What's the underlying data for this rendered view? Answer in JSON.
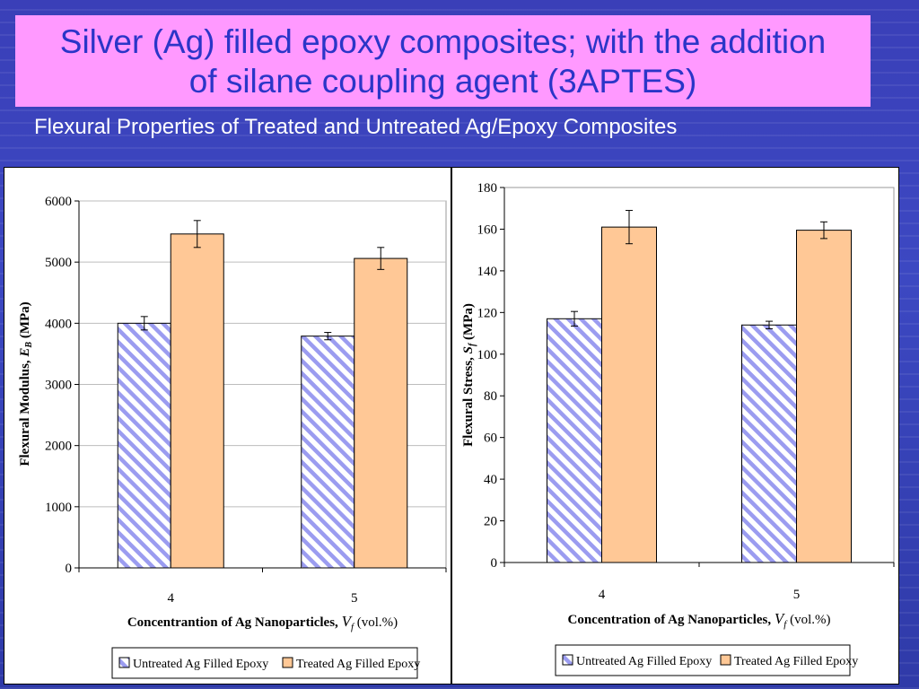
{
  "slide": {
    "title_line1": "Silver (Ag) filled epoxy composites; with the addition",
    "title_line2": "of silane coupling agent (3APTES)",
    "subtitle": "Flexural Properties of Treated and Untreated Ag/Epoxy Composites"
  },
  "colors": {
    "untreated_stripe": "#9b9cf0",
    "treated_fill": "#ffc896",
    "title_bg": "#ff99ff",
    "title_text": "#2b35c8"
  },
  "chart_data": [
    {
      "type": "bar",
      "categories": [
        "4",
        "5"
      ],
      "series": [
        {
          "name": "Untreated Ag Filled Epoxy",
          "values": [
            4000,
            3790
          ],
          "errors": [
            110,
            60
          ]
        },
        {
          "name": "Treated Ag Filled Epoxy",
          "values": [
            5460,
            5060
          ],
          "errors": [
            220,
            180
          ]
        }
      ],
      "ylim": [
        0,
        6000
      ],
      "yticks": [
        0,
        1000,
        2000,
        3000,
        4000,
        5000,
        6000
      ],
      "ylabel_main": "Flexural Modulus, ",
      "ylabel_sym": "E",
      "ylabel_sub": "B",
      "ylabel_unit": " (MPa)",
      "xlabel_main": "Concentrantion of Ag Nanoparticles, ",
      "xlabel_sym": "V",
      "xlabel_sub": "f",
      "xlabel_unit": " (vol.%)",
      "grid": true,
      "legend": "bottom"
    },
    {
      "type": "bar",
      "categories": [
        "4",
        "5"
      ],
      "series": [
        {
          "name": "Untreated Ag Filled Epoxy",
          "values": [
            117,
            114
          ],
          "errors": [
            3.5,
            1.8
          ]
        },
        {
          "name": "Treated Ag Filled Epoxy",
          "values": [
            161,
            159.5
          ],
          "errors": [
            8,
            4
          ]
        }
      ],
      "ylim": [
        0,
        180
      ],
      "yticks": [
        0,
        20,
        40,
        60,
        80,
        100,
        120,
        140,
        160,
        180
      ],
      "ylabel_main": "Flexural Stress, ",
      "ylabel_sym": "S",
      "ylabel_sub": "f",
      "ylabel_unit": " (MPa)",
      "xlabel_main": "Concentration of Ag Nanoparticles, ",
      "xlabel_sym": "V",
      "xlabel_sub": "f",
      "xlabel_unit": " (vol.%)",
      "grid": false,
      "legend": "bottom"
    }
  ]
}
